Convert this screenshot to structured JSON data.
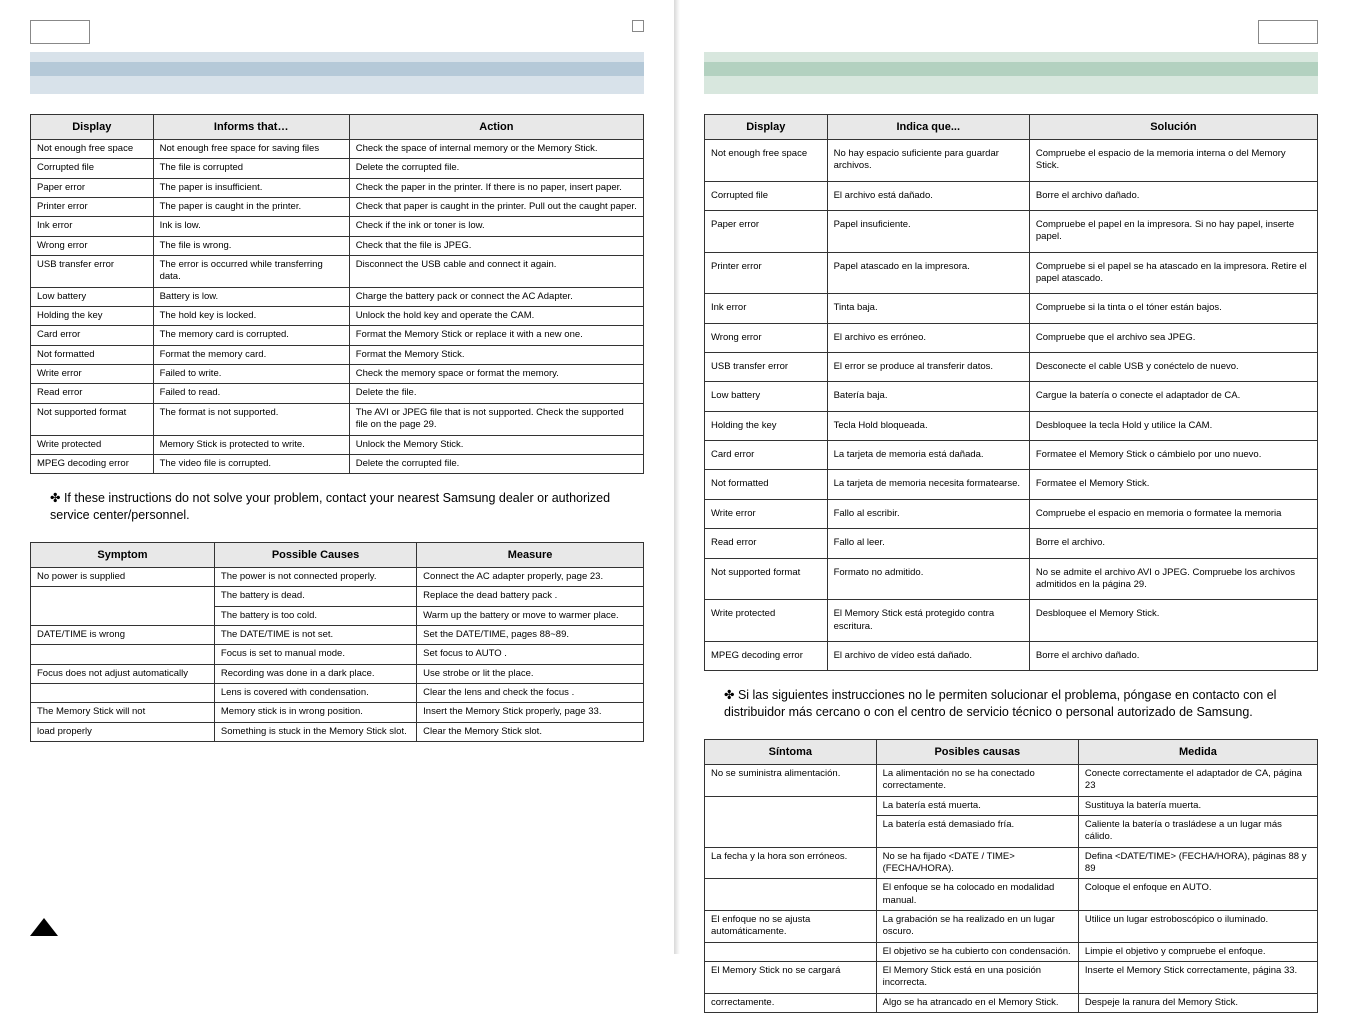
{
  "left": {
    "table1": {
      "headers": [
        "Display",
        "Informs that…",
        "Action"
      ],
      "rows": [
        [
          "Not enough free space",
          "Not enough free space for saving files",
          "Check the space of internal memory or the Memory Stick."
        ],
        [
          "Corrupted file",
          "The file is corrupted",
          "Delete the corrupted file."
        ],
        [
          "Paper error",
          "The paper is insufficient.",
          "Check the paper in the printer. If there is no paper, insert paper."
        ],
        [
          "Printer error",
          "The paper is caught in the printer.",
          "Check that paper is caught in the printer. Pull out the caught paper."
        ],
        [
          "Ink error",
          "Ink is low.",
          "Check if the ink or toner is low."
        ],
        [
          "Wrong error",
          "The file is wrong.",
          "Check that the file is JPEG."
        ],
        [
          "USB transfer error",
          "The error is occurred while transferring data.",
          "Disconnect the USB cable and connect it again."
        ],
        [
          "Low battery",
          "Battery is low.",
          "Charge the battery pack or connect the AC Adapter."
        ],
        [
          "Holding the key",
          "The hold key is locked.",
          "Unlock the hold key and operate the CAM."
        ],
        [
          "Card error",
          "The memory card is corrupted.",
          "Format the Memory Stick or replace it with a new one."
        ],
        [
          "Not formatted",
          "Format the memory card.",
          "Format the Memory Stick."
        ],
        [
          "Write error",
          "Failed to write.",
          "Check the memory space or format the memory."
        ],
        [
          "Read error",
          "Failed to read.",
          "Delete the file."
        ],
        [
          "Not supported format",
          "The format is not supported.",
          "The AVI or JPEG file that is not supported. Check the supported file on the page 29."
        ],
        [
          "Write protected",
          "Memory Stick is protected to write.",
          "Unlock the Memory Stick."
        ],
        [
          "MPEG decoding error",
          "The video file is corrupted.",
          "Delete the corrupted file."
        ]
      ]
    },
    "note": "✤ If these instructions do not solve your problem, contact your nearest Samsung dealer or authorized service center/personnel.",
    "table2": {
      "headers": [
        "Symptom",
        "Possible Causes",
        "Measure"
      ],
      "rows": [
        {
          "c0": "No power is supplied",
          "c1": "The power is not connected properly.",
          "c2": "Connect the AC adapter properly, page 23."
        },
        {
          "c0": "",
          "c1": "The battery is dead.",
          "c2": "Replace the dead battery pack ."
        },
        {
          "c0": "",
          "c1": "The battery is too cold.",
          "c2": "Warm up the battery or move to warmer place."
        },
        {
          "c0": "DATE/TIME is wrong",
          "c1": "The DATE/TIME is not set.",
          "c2": "Set the DATE/TIME, pages 88~89."
        },
        {
          "c0": "",
          "c1": "Focus is set to manual mode.",
          "c2": "Set focus to AUTO ."
        },
        {
          "c0": "Focus does not adjust automatically",
          "c1": "Recording was done in a dark place.",
          "c2": "Use strobe or lit the place."
        },
        {
          "c0": "",
          "c1": "Lens is covered with condensation.",
          "c2": "Clear the lens and check the focus ."
        },
        {
          "c0": "The Memory Stick will not",
          "c1": "Memory stick is in wrong position.",
          "c2": "Insert the Memory Stick properly, page 33."
        },
        {
          "c0": "load properly",
          "c1": "Something is stuck in the Memory Stick slot.",
          "c2": "Clear the Memory Stick slot."
        }
      ]
    }
  },
  "right": {
    "table1": {
      "headers": [
        "Display",
        "Indica que...",
        "Solución"
      ],
      "rows": [
        [
          "Not enough free space",
          "No hay espacio suficiente para guardar archivos.",
          "Compruebe el espacio de la memoria interna o del Memory Stick."
        ],
        [
          "Corrupted file",
          "El archivo está dañado.",
          "Borre el archivo dañado."
        ],
        [
          "Paper error",
          "Papel insuficiente.",
          "Compruebe el papel en la impresora. Si no hay papel, inserte papel."
        ],
        [
          "Printer error",
          "Papel atascado en la impresora.",
          "Compruebe si el papel se ha atascado en la impresora. Retire el papel atascado."
        ],
        [
          "Ink error",
          "Tinta baja.",
          "Compruebe si la tinta o el tóner están bajos."
        ],
        [
          "Wrong error",
          "El archivo es erróneo.",
          "Compruebe que el archivo sea JPEG."
        ],
        [
          "USB transfer error",
          "El error se produce al transferir datos.",
          "Desconecte el cable USB y conéctelo de nuevo."
        ],
        [
          "Low battery",
          "Batería baja.",
          "Cargue la batería o conecte el adaptador de CA."
        ],
        [
          "Holding the key",
          "Tecla Hold bloqueada.",
          "Desbloquee la tecla Hold y utilice la CAM."
        ],
        [
          "Card error",
          "La tarjeta de memoria está dañada.",
          "Formatee el Memory Stick o cámbielo por uno nuevo."
        ],
        [
          "Not formatted",
          "La tarjeta de memoria necesita formatearse.",
          "Formatee el Memory Stick."
        ],
        [
          "Write error",
          "Fallo al escribir.",
          "Compruebe el espacio en memoria o formatee la memoria"
        ],
        [
          "Read error",
          "Fallo al leer.",
          "Borre el archivo."
        ],
        [
          "Not supported format",
          "Formato no admitido.",
          "No se admite el archivo AVI o JPEG. Compruebe los archivos admitidos en la página 29."
        ],
        [
          "Write protected",
          "El Memory Stick está protegido contra escritura.",
          "Desbloquee el Memory Stick."
        ],
        [
          "MPEG decoding error",
          "El archivo de vídeo está dañado.",
          "Borre el archivo dañado."
        ]
      ]
    },
    "note": "✤ Si las siguientes instrucciones no le permiten solucionar el problema, póngase en contacto con el distribuidor más cercano o con el centro de servicio técnico o personal autorizado de Samsung.",
    "table2": {
      "headers": [
        "Síntoma",
        "Posibles causas",
        "Medida"
      ],
      "rows": [
        {
          "c0": "No se suministra alimentación.",
          "c1": "La alimentación no se ha conectado correctamente.",
          "c2": "Conecte correctamente el adaptador de CA, página 23"
        },
        {
          "c0": "",
          "c1": "La batería está muerta.",
          "c2": "Sustituya la batería muerta."
        },
        {
          "c0": "",
          "c1": "La batería está demasiado fría.",
          "c2": "Caliente la batería o trasládese a un lugar más cálido."
        },
        {
          "c0": "La fecha y la hora son erróneos.",
          "c1": "No se ha fijado <DATE / TIME> (FECHA/HORA).",
          "c2": "Defina <DATE/TIME> (FECHA/HORA), páginas 88 y 89"
        },
        {
          "c0": "",
          "c1": "El enfoque se ha colocado en modalidad manual.",
          "c2": "Coloque el enfoque en AUTO."
        },
        {
          "c0": "El enfoque no se ajusta automáticamente.",
          "c1": "La grabación se ha realizado en un lugar oscuro.",
          "c2": "Utilice un lugar estroboscópico o iluminado."
        },
        {
          "c0": "",
          "c1": "El objetivo se ha cubierto con condensación.",
          "c2": "Limpie el objetivo y compruebe el enfoque."
        },
        {
          "c0": "El Memory Stick no se cargará",
          "c1": "El Memory Stick está en una posición incorrecta.",
          "c2": "Inserte el Memory Stick correctamente, página 33."
        },
        {
          "c0": "correctamente.",
          "c1": "Algo se ha atrancado en el Memory Stick.",
          "c2": "Despeje la ranura del Memory Stick."
        }
      ]
    }
  }
}
